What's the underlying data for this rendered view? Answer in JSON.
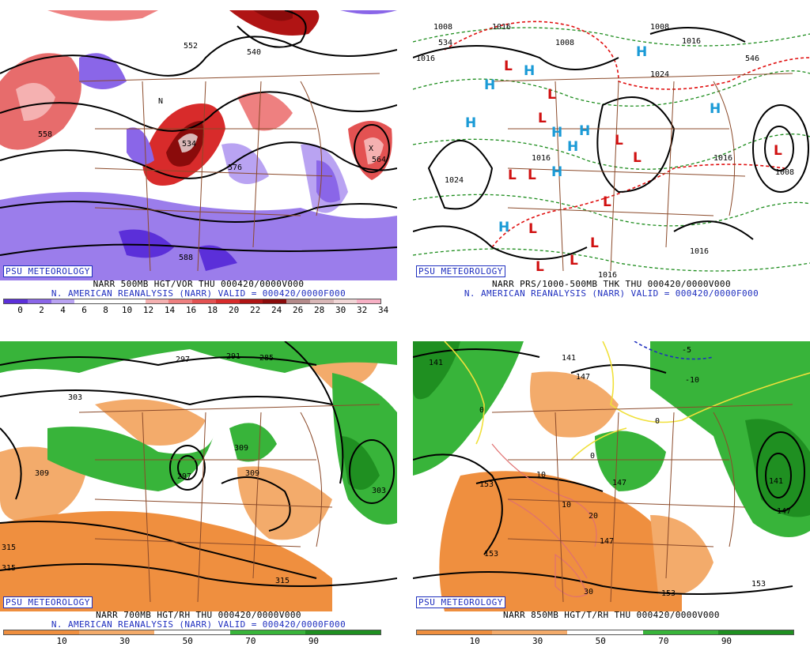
{
  "brand": "PSU METEOROLOGY",
  "subtitle": "N. AMERICAN REANALYSIS (NARR) VALID = 000420/0000F000",
  "colors": {
    "vort": [
      "#5b2fd9",
      "#8a66e8",
      "#b9a3f2",
      "#ffffff",
      "#ffffff",
      "#ffffff",
      "#f5b1b1",
      "#ee8080",
      "#e35252",
      "#d82b2b",
      "#b01414",
      "#8a0b0b",
      "#b48a8a",
      "#d9b7b7",
      "#f1d6d6",
      "#f7b0c4"
    ],
    "rh": [
      "#ef8f3f",
      "#f3ab6b",
      "#ffffff",
      "#38b43a",
      "#1f8f21"
    ],
    "contour": "#000000",
    "border": "#8b4a2a",
    "high": "#1a9ad6",
    "low": "#d01010",
    "thickness": "#1c8c1c",
    "freeze": "#e01010"
  },
  "panels": [
    {
      "title": "NARR 500MB HGT/VOR THU 000420/0000V000",
      "ticks": [
        "0",
        "2",
        "4",
        "6",
        "8",
        "10",
        "12",
        "14",
        "16",
        "18",
        "20",
        "22",
        "24",
        "26",
        "28",
        "30",
        "32",
        "34"
      ],
      "labels": [
        "552",
        "540",
        "558",
        "576",
        "564",
        "588",
        "534",
        "N",
        "X"
      ]
    },
    {
      "title": "NARR PRS/1000-500MB THK THU 000420/0000V000",
      "labels": [
        "1008",
        "1016",
        "1024",
        "1016",
        "1008",
        "1016",
        "1008",
        "1016",
        "1024",
        "1016",
        "1016",
        "1008",
        "534",
        "546",
        "1016"
      ],
      "high_symbol": "H",
      "low_symbol": "L"
    },
    {
      "title": "NARR 700MB HGT/RH THU 000420/0000V000",
      "ticks": [
        "10",
        "30",
        "50",
        "70",
        "90"
      ],
      "labels": [
        "297",
        "291",
        "285",
        "303",
        "309",
        "297",
        "309",
        "315",
        "315",
        "303",
        "309",
        "315"
      ]
    },
    {
      "title": "NARR 850MB HGT/T/RH THU 000420/0000V000",
      "ticks": [
        "10",
        "30",
        "50",
        "70",
        "90"
      ],
      "labels": [
        "141",
        "147",
        "153",
        "141",
        "147",
        "153",
        "147",
        "153",
        "147",
        "153",
        "141"
      ],
      "temp_labels": [
        "0",
        "0",
        "0",
        "10",
        "10",
        "20",
        "30",
        "-10",
        "-5"
      ]
    }
  ]
}
